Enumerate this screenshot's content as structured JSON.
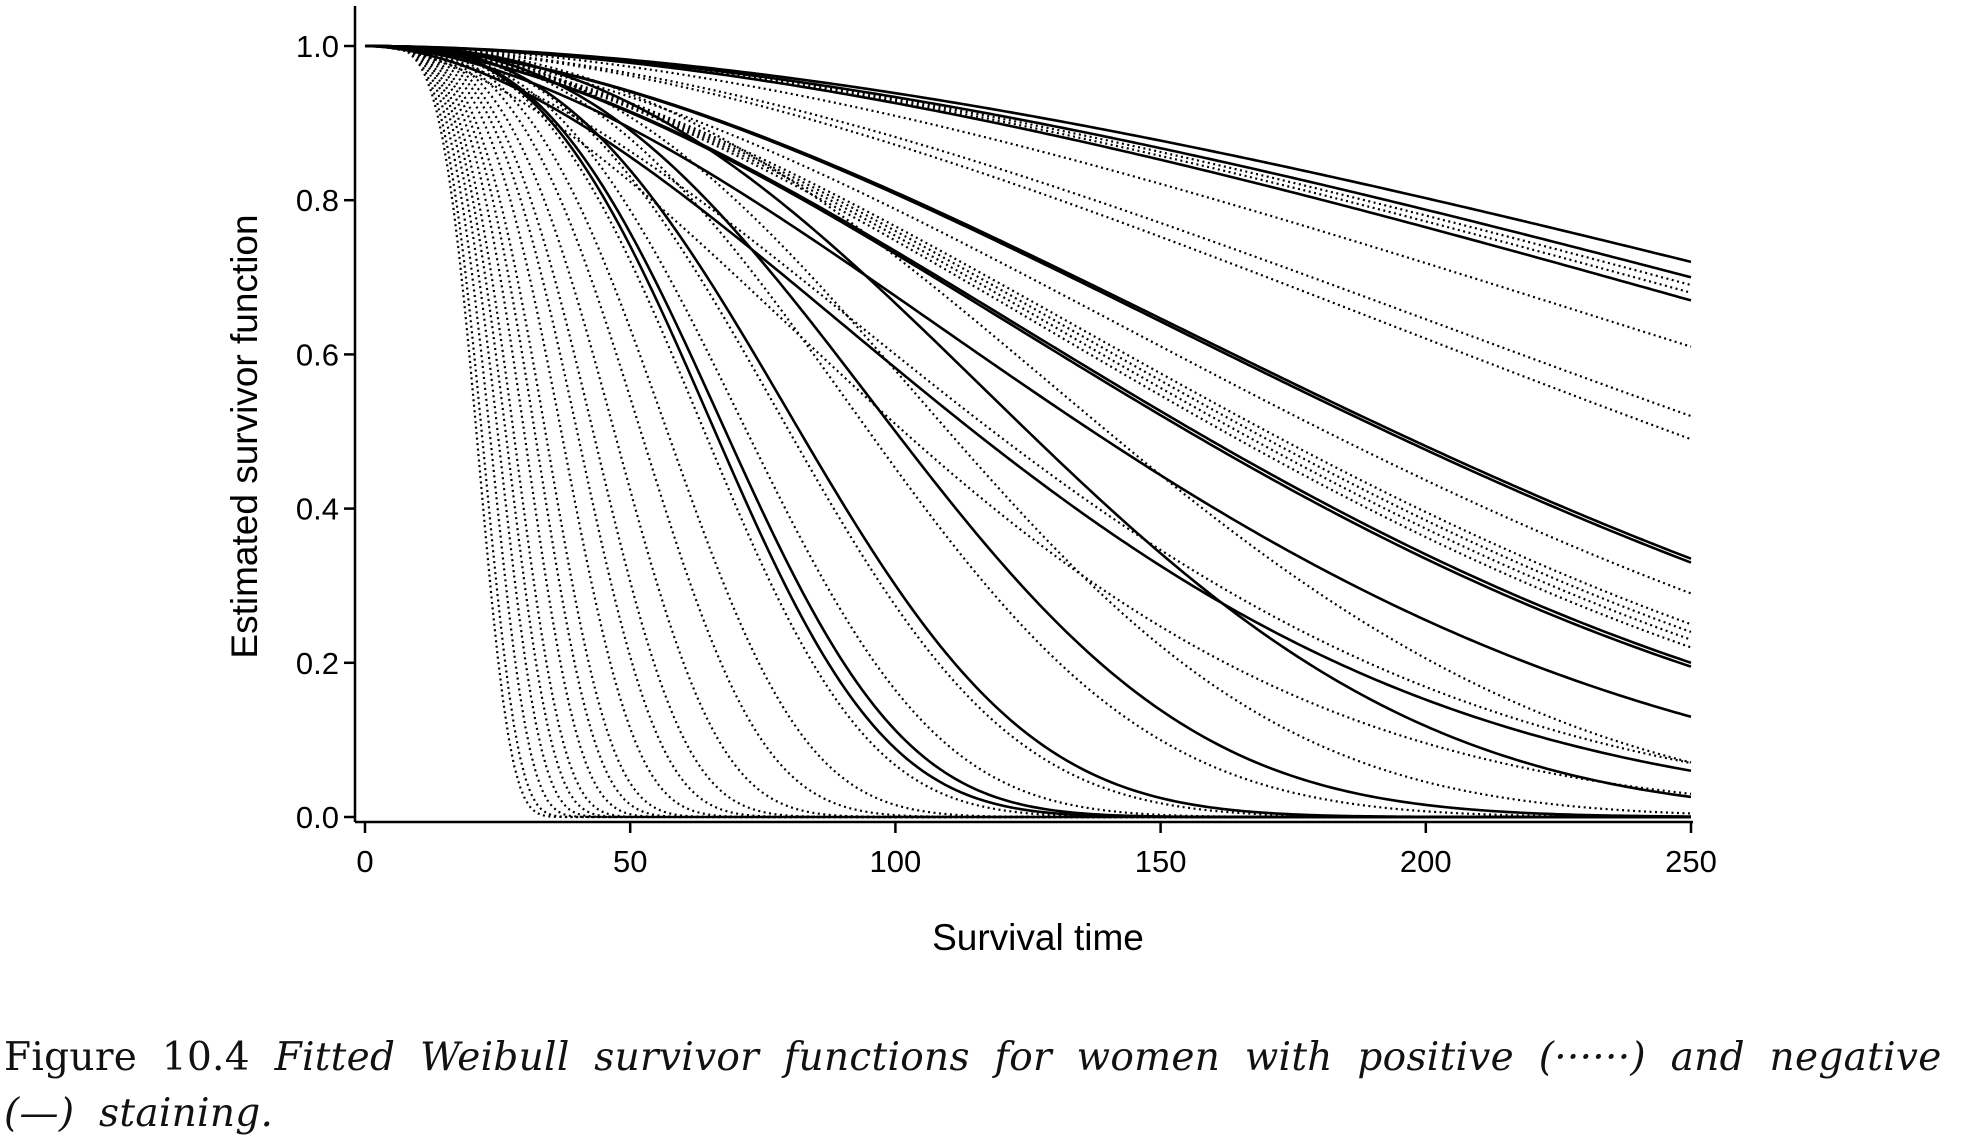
{
  "chart_data": {
    "type": "line",
    "title": "",
    "xlabel": "Survival time",
    "ylabel": "Estimated survivor function",
    "xlim": [
      0,
      250
    ],
    "ylim": [
      0,
      1
    ],
    "xticks": [
      "0",
      "50",
      "100",
      "150",
      "200",
      "250"
    ],
    "yticks": [
      "0.0",
      "0.2",
      "0.4",
      "0.6",
      "0.8",
      "1.0"
    ],
    "grid": false,
    "legend": "none",
    "line_color": "#000000",
    "series_model": "S(t) = exp(-(t/scale)^shape)",
    "series": [
      {
        "style": "dotted",
        "end_value": 0.69
      },
      {
        "style": "dotted",
        "end_value": 0.68
      },
      {
        "style": "dotted",
        "end_value": 0.61
      },
      {
        "style": "dotted",
        "end_value": 0.52
      },
      {
        "style": "dotted",
        "end_value": 0.49
      },
      {
        "style": "dotted",
        "end_value": 0.29
      },
      {
        "style": "dotted",
        "end_value": 0.25
      },
      {
        "style": "dotted",
        "end_value": 0.24
      },
      {
        "style": "dotted",
        "end_value": 0.23
      },
      {
        "style": "dotted",
        "end_value": 0.22
      },
      {
        "style": "dotted",
        "end_value": 0.07
      },
      {
        "style": "dotted",
        "end_value": 0.03
      },
      {
        "style": "dotted",
        "median": 140
      },
      {
        "style": "dotted",
        "median": 110
      },
      {
        "style": "dotted",
        "median": 95
      },
      {
        "style": "dotted",
        "median": 80
      },
      {
        "style": "dotted",
        "median": 72
      },
      {
        "style": "dotted",
        "median": 64
      },
      {
        "style": "dotted",
        "median": 57
      },
      {
        "style": "dotted",
        "median": 52
      },
      {
        "style": "dotted",
        "median": 47
      },
      {
        "style": "dotted",
        "median": 43
      },
      {
        "style": "dotted",
        "median": 40
      },
      {
        "style": "dotted",
        "median": 37
      },
      {
        "style": "dotted",
        "median": 34
      },
      {
        "style": "dotted",
        "median": 32
      },
      {
        "style": "dotted",
        "median": 30
      },
      {
        "style": "dotted",
        "median": 28
      },
      {
        "style": "dotted",
        "median": 26.5
      },
      {
        "style": "dotted",
        "median": 25
      },
      {
        "style": "dotted",
        "median": 23.5
      },
      {
        "style": "dotted",
        "median": 22
      },
      {
        "style": "dotted",
        "median": 21
      },
      {
        "style": "solid",
        "end_value": 0.72
      },
      {
        "style": "solid",
        "end_value": 0.7
      },
      {
        "style": "solid",
        "end_value": 0.67
      },
      {
        "style": "solid",
        "end_value": 0.335
      },
      {
        "style": "solid",
        "end_value": 0.33
      },
      {
        "style": "solid",
        "end_value": 0.2
      },
      {
        "style": "solid",
        "end_value": 0.195
      },
      {
        "style": "solid",
        "end_value": 0.13
      },
      {
        "style": "solid",
        "end_value": 0.06
      },
      {
        "style": "solid",
        "median": 125
      },
      {
        "style": "solid",
        "median": 100
      },
      {
        "style": "solid",
        "median": 82
      },
      {
        "style": "solid",
        "median": 68
      },
      {
        "style": "solid",
        "median": 66
      }
    ]
  },
  "caption": {
    "label": "Figure 10.4",
    "text": "Fitted Weibull survivor functions for women with positive (······) and negative (—) staining."
  }
}
